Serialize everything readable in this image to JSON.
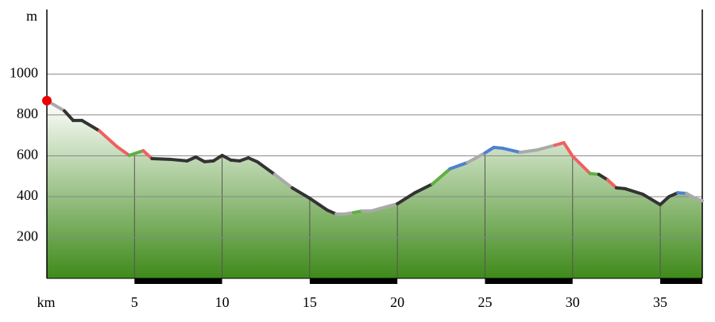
{
  "chart_data": {
    "type": "area",
    "x_label": "km",
    "y_label": "m",
    "xlim": [
      0,
      37.4
    ],
    "ylim": [
      0,
      1316
    ],
    "xticks": [
      5,
      10,
      15,
      20,
      25,
      30,
      35
    ],
    "yticks": [
      200,
      400,
      600,
      800,
      1000
    ],
    "grid": true,
    "fill_top": "#ffffff",
    "fill_bottom": "#3f8a1a",
    "start_color": "#ee0000",
    "series": [
      {
        "x": [
          0,
          1,
          1.5,
          2,
          3,
          4,
          4.7,
          5.5,
          6,
          7,
          8,
          8.5,
          9,
          9.5,
          10,
          10.5,
          11,
          11.5,
          12,
          13,
          14,
          15,
          16,
          16.5,
          17,
          17.5,
          18,
          18.5,
          19,
          20,
          21,
          22,
          23,
          24,
          25,
          25.5,
          26,
          27,
          28,
          29,
          29.5,
          30,
          31,
          31.5,
          32,
          32.5,
          33,
          34,
          35,
          35.5,
          36,
          36.5,
          37,
          37.4
        ],
        "values": [
          870,
          820,
          773,
          773,
          722,
          645,
          602,
          625,
          586,
          583,
          575,
          594,
          571,
          575,
          602,
          579,
          575,
          590,
          571,
          509,
          443,
          392,
          334,
          315,
          315,
          322,
          330,
          330,
          342,
          365,
          419,
          462,
          536,
          567,
          614,
          641,
          637,
          617,
          629,
          652,
          664,
          598,
          513,
          509,
          482,
          443,
          439,
          412,
          361,
          400,
          419,
          416,
          392,
          380
        ],
        "segment_colors": [
          "#aaaaaa",
          "#aaaaaa",
          "#333333",
          "#333333",
          "#333333",
          "#f06060",
          "#f06060",
          "#60b040",
          "#f06060",
          "#333333",
          "#333333",
          "#333333",
          "#333333",
          "#333333",
          "#333333",
          "#333333",
          "#333333",
          "#333333",
          "#333333",
          "#333333",
          "#aaaaaa",
          "#333333",
          "#333333",
          "#333333",
          "#aaaaaa",
          "#aaaaaa",
          "#60b040",
          "#aaaaaa",
          "#aaaaaa",
          "#aaaaaa",
          "#333333",
          "#333333",
          "#60b040",
          "#5080d0",
          "#aaaaaa",
          "#5080d0",
          "#5080d0",
          "#5080d0",
          "#aaaaaa",
          "#aaaaaa",
          "#f06060",
          "#f06060",
          "#f06060",
          "#60b040",
          "#333333",
          "#f06060",
          "#333333",
          "#333333",
          "#333333",
          "#333333",
          "#333333",
          "#5080d0",
          "#aaaaaa",
          "#aaaaaa"
        ]
      }
    ]
  }
}
